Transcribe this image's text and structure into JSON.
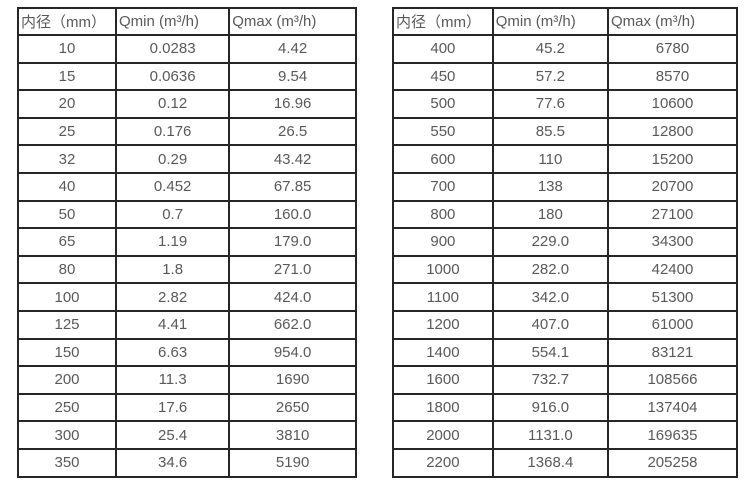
{
  "colors": {
    "background": "#ffffff",
    "border": "#262626",
    "text": "#595959"
  },
  "tables": [
    {
      "name": "small-diameters",
      "headers": {
        "diameter": "内径（mm）",
        "qmin": "Qmin (m³/h)",
        "qmax": "Qmax (m³/h)"
      },
      "rows": [
        [
          "10",
          "0.0283",
          "4.42"
        ],
        [
          "15",
          "0.0636",
          "9.54"
        ],
        [
          "20",
          "0.12",
          "16.96"
        ],
        [
          "25",
          "0.176",
          "26.5"
        ],
        [
          "32",
          "0.29",
          "43.42"
        ],
        [
          "40",
          "0.452",
          "67.85"
        ],
        [
          "50",
          "0.7",
          "160.0"
        ],
        [
          "65",
          "1.19",
          "179.0"
        ],
        [
          "80",
          "1.8",
          "271.0"
        ],
        [
          "100",
          "2.82",
          "424.0"
        ],
        [
          "125",
          "4.41",
          "662.0"
        ],
        [
          "150",
          "6.63",
          "954.0"
        ],
        [
          "200",
          "11.3",
          "1690"
        ],
        [
          "250",
          "17.6",
          "2650"
        ],
        [
          "300",
          "25.4",
          "3810"
        ],
        [
          "350",
          "34.6",
          "5190"
        ]
      ]
    },
    {
      "name": "large-diameters",
      "headers": {
        "diameter": "内径（mm）",
        "qmin": "Qmin (m³/h)",
        "qmax": "Qmax (m³/h)"
      },
      "rows": [
        [
          "400",
          "45.2",
          "6780"
        ],
        [
          "450",
          "57.2",
          "8570"
        ],
        [
          "500",
          "77.6",
          "10600"
        ],
        [
          "550",
          "85.5",
          "12800"
        ],
        [
          "600",
          "110",
          "15200"
        ],
        [
          "700",
          "138",
          "20700"
        ],
        [
          "800",
          "180",
          "27100"
        ],
        [
          "900",
          "229.0",
          "34300"
        ],
        [
          "1000",
          "282.0",
          "42400"
        ],
        [
          "1100",
          "342.0",
          "51300"
        ],
        [
          "1200",
          "407.0",
          "61000"
        ],
        [
          "1400",
          "554.1",
          "83121"
        ],
        [
          "1600",
          "732.7",
          "108566"
        ],
        [
          "1800",
          "916.0",
          "137404"
        ],
        [
          "2000",
          "1131.0",
          "169635"
        ],
        [
          "2200",
          "1368.4",
          "205258"
        ]
      ]
    }
  ]
}
